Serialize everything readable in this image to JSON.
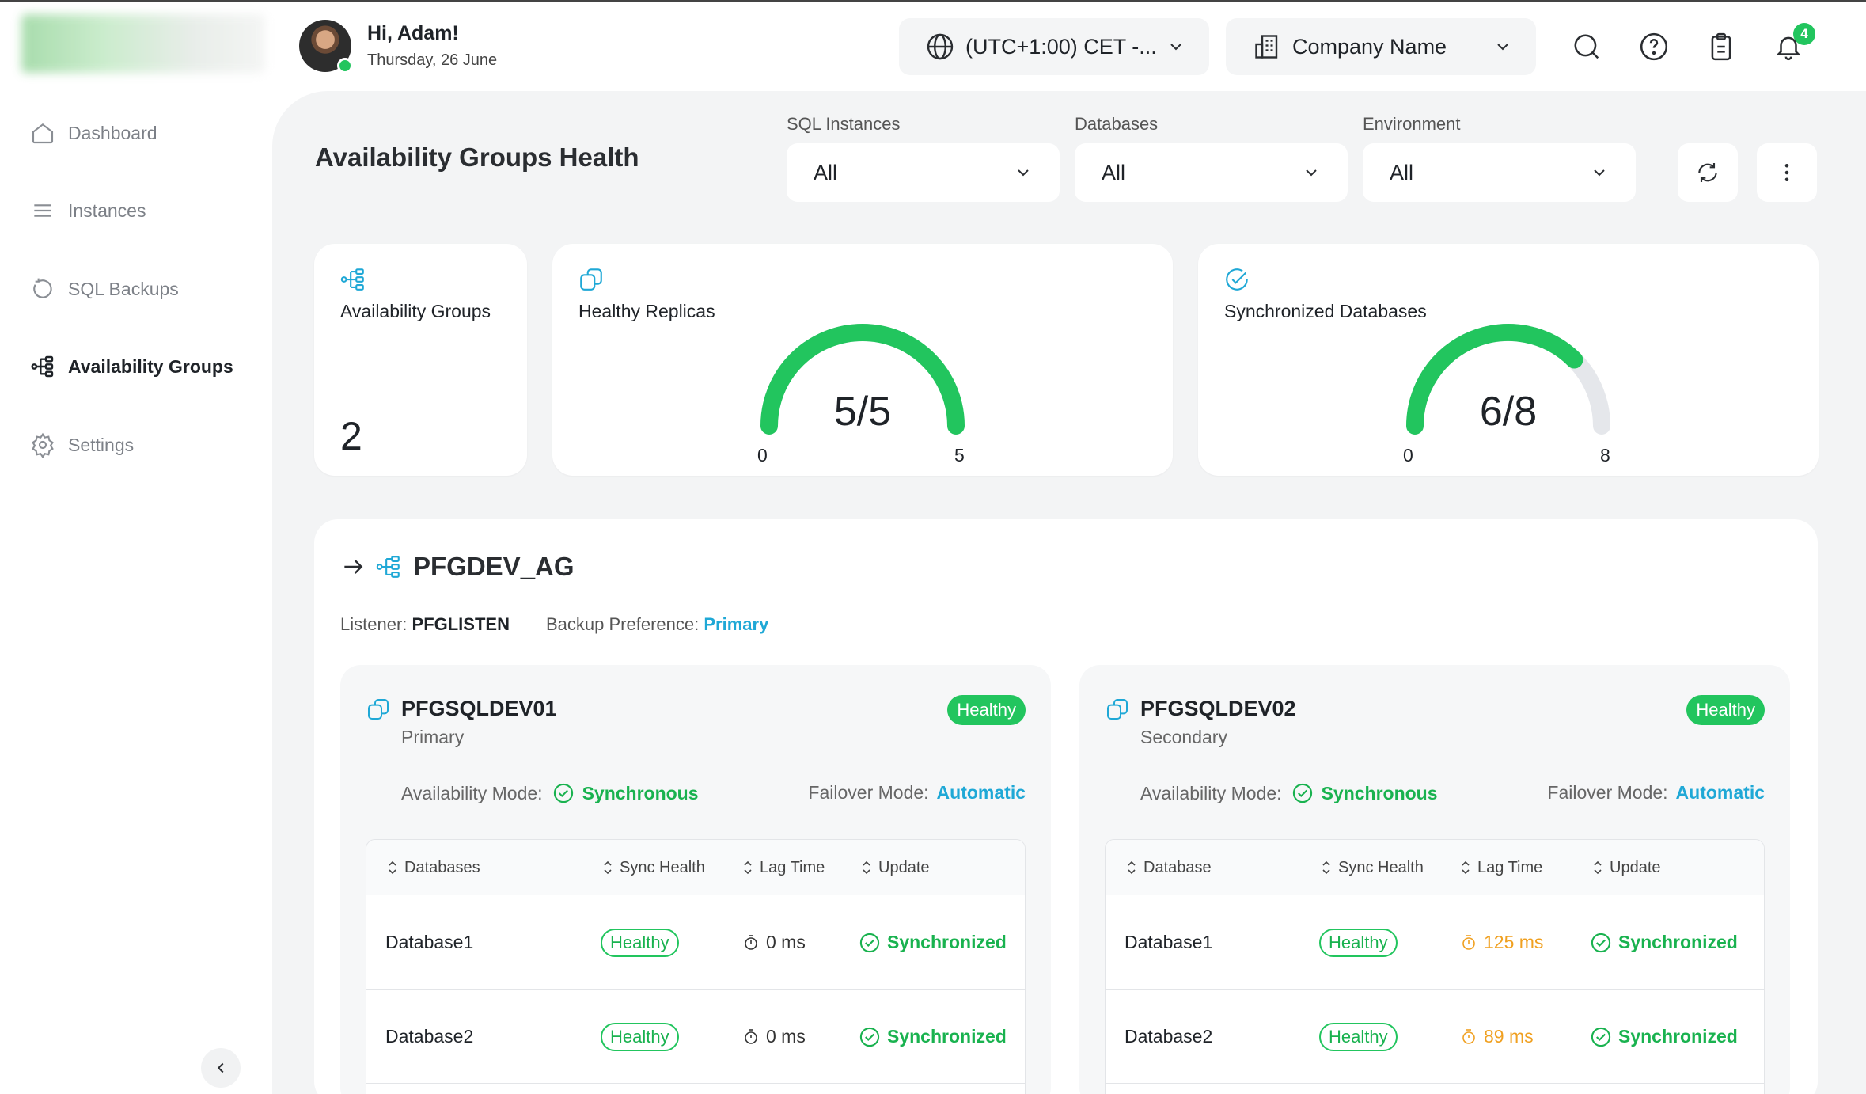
{
  "header": {
    "user": {
      "greeting": "Hi, Adam!",
      "date": "Thursday, 26 June"
    },
    "timezone": "(UTC+1:00) CET -...",
    "company": "Company Name",
    "notification_count": "4",
    "icons": [
      "search-icon",
      "help-icon",
      "clipboard-icon",
      "bell-icon"
    ]
  },
  "sidebar": {
    "items": [
      {
        "label": "Dashboard",
        "icon": "home-icon",
        "active": false
      },
      {
        "label": "Instances",
        "icon": "menu-icon",
        "active": false
      },
      {
        "label": "SQL Backups",
        "icon": "restore-icon",
        "active": false
      },
      {
        "label": "Availability Groups",
        "icon": "hierarchy-icon",
        "active": true
      },
      {
        "label": "Settings",
        "icon": "gear-icon",
        "active": false
      }
    ]
  },
  "page": {
    "title": "Availability Groups Health",
    "filters": {
      "sql_instances": {
        "label": "SQL Instances",
        "value": "All"
      },
      "databases": {
        "label": "Databases",
        "value": "All"
      },
      "environment": {
        "label": "Environment",
        "value": "All"
      }
    }
  },
  "kpis": {
    "availability_groups": {
      "title": "Availability Groups",
      "value": "2"
    },
    "healthy_replicas": {
      "title": "Healthy Replicas",
      "value": "5/5",
      "current": 5,
      "min": "0",
      "max": "5",
      "total": 5
    },
    "synchronized_databases": {
      "title": "Synchronized Databases",
      "value": "6/8",
      "current": 6,
      "min": "0",
      "max": "8",
      "total": 8
    }
  },
  "availability_group": {
    "name": "PFGDEV_AG",
    "listener_label": "Listener:",
    "listener": "PFGLISTEN",
    "backup_pref_label": "Backup Preference:",
    "backup_pref": "Primary",
    "replicas": [
      {
        "name": "PFGSQLDEV01",
        "role": "Primary",
        "status": "Healthy",
        "availability_mode_label": "Availability Mode:",
        "availability_mode": "Synchronous",
        "failover_mode_label": "Failover Mode:",
        "failover_mode": "Automatic",
        "columns": [
          "Databases",
          "Sync Health",
          "Lag Time",
          "Update"
        ],
        "rows": [
          {
            "database": "Database1",
            "sync_health": "Healthy",
            "lag": "0 ms",
            "lag_warn": false,
            "update": "Synchronized"
          },
          {
            "database": "Database2",
            "sync_health": "Healthy",
            "lag": "0 ms",
            "lag_warn": false,
            "update": "Synchronized"
          }
        ]
      },
      {
        "name": "PFGSQLDEV02",
        "role": "Secondary",
        "status": "Healthy",
        "availability_mode_label": "Availability Mode:",
        "availability_mode": "Synchronous",
        "failover_mode_label": "Failover Mode:",
        "failover_mode": "Automatic",
        "columns": [
          "Database",
          "Sync Health",
          "Lag Time",
          "Update"
        ],
        "rows": [
          {
            "database": "Database1",
            "sync_health": "Healthy",
            "lag": "125 ms",
            "lag_warn": true,
            "update": "Synchronized"
          },
          {
            "database": "Database2",
            "sync_health": "Healthy",
            "lag": "89 ms",
            "lag_warn": true,
            "update": "Synchronized"
          }
        ]
      }
    ]
  },
  "colors": {
    "accent_green": "#22c55e",
    "accent_blue": "#1fa8d6",
    "warning": "#f0a020",
    "gauge_track": "#e5e7eb"
  }
}
